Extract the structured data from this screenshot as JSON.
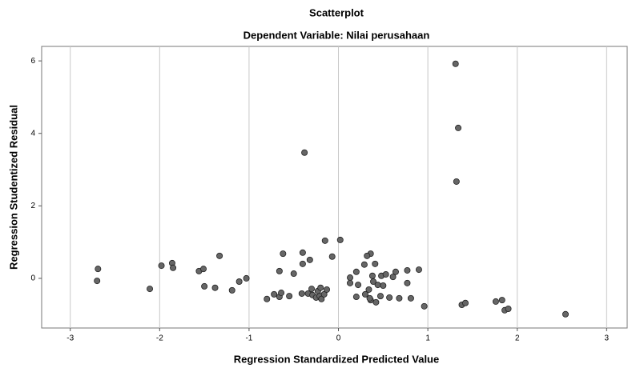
{
  "chart_data": {
    "type": "scatter",
    "title": "Scatterplot",
    "subtitle": "Dependent Variable: Nilai perusahaan",
    "xlabel": "Regression Standardized Predicted Value",
    "ylabel": "Regression Studentized Residual",
    "x": [
      1.31,
      1.34,
      1.32,
      -0.38,
      -2.69,
      -2.7,
      -2.11,
      -1.98,
      -1.86,
      -1.85,
      -1.56,
      -1.51,
      -1.5,
      -1.38,
      -1.33,
      -1.19,
      -1.11,
      -1.03,
      -0.8,
      -0.72,
      -0.66,
      -0.64,
      -0.62,
      -0.66,
      -0.55,
      -0.5,
      -0.41,
      -0.4,
      -0.4,
      -0.34,
      -0.32,
      -0.3,
      -0.29,
      -0.25,
      -0.23,
      -0.21,
      -0.2,
      -0.19,
      -0.16,
      -0.13,
      -0.15,
      -0.07,
      0.02,
      0.13,
      0.13,
      0.2,
      0.22,
      0.2,
      0.29,
      0.3,
      0.34,
      0.36,
      0.38,
      0.36,
      0.32,
      0.35,
      0.39,
      0.42,
      0.41,
      0.44,
      0.48,
      0.47,
      0.5,
      0.53,
      0.57,
      0.61,
      0.64,
      0.68,
      0.77,
      0.77,
      0.81,
      0.9,
      0.96,
      1.38,
      1.42,
      1.76,
      1.83,
      1.86,
      1.9,
      2.54
    ],
    "values": [
      5.92,
      4.15,
      2.67,
      3.47,
      0.26,
      -0.07,
      -0.29,
      0.35,
      0.42,
      0.29,
      0.2,
      0.26,
      -0.22,
      -0.26,
      0.62,
      -0.33,
      -0.09,
      0.0,
      -0.57,
      -0.44,
      -0.51,
      -0.4,
      0.68,
      0.2,
      -0.49,
      0.13,
      -0.42,
      0.4,
      0.71,
      -0.42,
      0.51,
      -0.29,
      -0.46,
      -0.53,
      -0.35,
      -0.49,
      -0.26,
      -0.57,
      -0.44,
      -0.31,
      1.04,
      0.6,
      1.06,
      0.02,
      -0.13,
      0.18,
      -0.18,
      -0.51,
      0.38,
      -0.44,
      -0.31,
      -0.6,
      0.07,
      0.68,
      0.62,
      -0.55,
      -0.09,
      -0.66,
      0.4,
      -0.18,
      0.07,
      -0.49,
      -0.2,
      0.11,
      -0.53,
      0.04,
      0.18,
      -0.55,
      0.22,
      -0.13,
      -0.55,
      0.24,
      -0.77,
      -0.73,
      -0.68,
      -0.64,
      -0.6,
      -0.88,
      -0.84,
      -0.99
    ],
    "color": "#666666",
    "xlim": [
      -3.32,
      3.23
    ],
    "ylim": [
      -1.37,
      6.4
    ],
    "xticks": [
      -3,
      -2,
      -1,
      0,
      1,
      2,
      3
    ],
    "yticks": [
      0,
      2,
      4,
      6
    ],
    "grid": "x"
  }
}
